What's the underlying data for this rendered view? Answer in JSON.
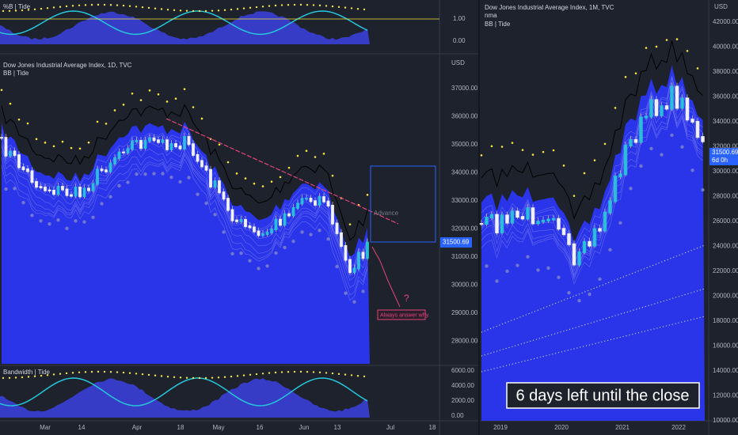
{
  "top_panel": {
    "label": "%B | Tide",
    "ticks": [
      "1.00",
      "0.00"
    ]
  },
  "main_panel": {
    "title": "Dow Jones Industrial Average Index, 1D, TVC",
    "indicator": "BB | Tide",
    "currency": "USD",
    "ticks": [
      "37000.00",
      "36000.00",
      "35000.00",
      "34000.00",
      "33000.00",
      "32000.00",
      "31000.00",
      "30000.00",
      "29000.00",
      "28000.00"
    ],
    "last_price": "31500.69",
    "annotations": {
      "advance": "Advance",
      "question": "?",
      "note": "Always answer why."
    }
  },
  "bottom_panel": {
    "label": "Bandwidth | Tide",
    "ticks": [
      "6000.00",
      "4000.00",
      "2000.00",
      "0.00"
    ]
  },
  "x_axis": [
    "Mar",
    "14",
    "Apr",
    "18",
    "May",
    "16",
    "Jun",
    "13",
    "Jul",
    "18"
  ],
  "right_panel": {
    "title": "Dow Jones Industrial Average Index, 1M, TVC",
    "overlay": "nma",
    "indicator": "BB | Tide",
    "currency": "USD",
    "ticks": [
      "42000.00",
      "40000.00",
      "38000.00",
      "36000.00",
      "34000.00",
      "32000.00",
      "30000.00",
      "28000.00",
      "26000.00",
      "24000.00",
      "22000.00",
      "20000.00",
      "18000.00",
      "16000.00",
      "14000.00",
      "12000.00",
      "10000.00"
    ],
    "last_price": "31500.69",
    "countdown": "6d 0h",
    "x_axis": [
      "2019",
      "2020",
      "2021",
      "2022"
    ],
    "callout": "6 days left until the close"
  }
}
